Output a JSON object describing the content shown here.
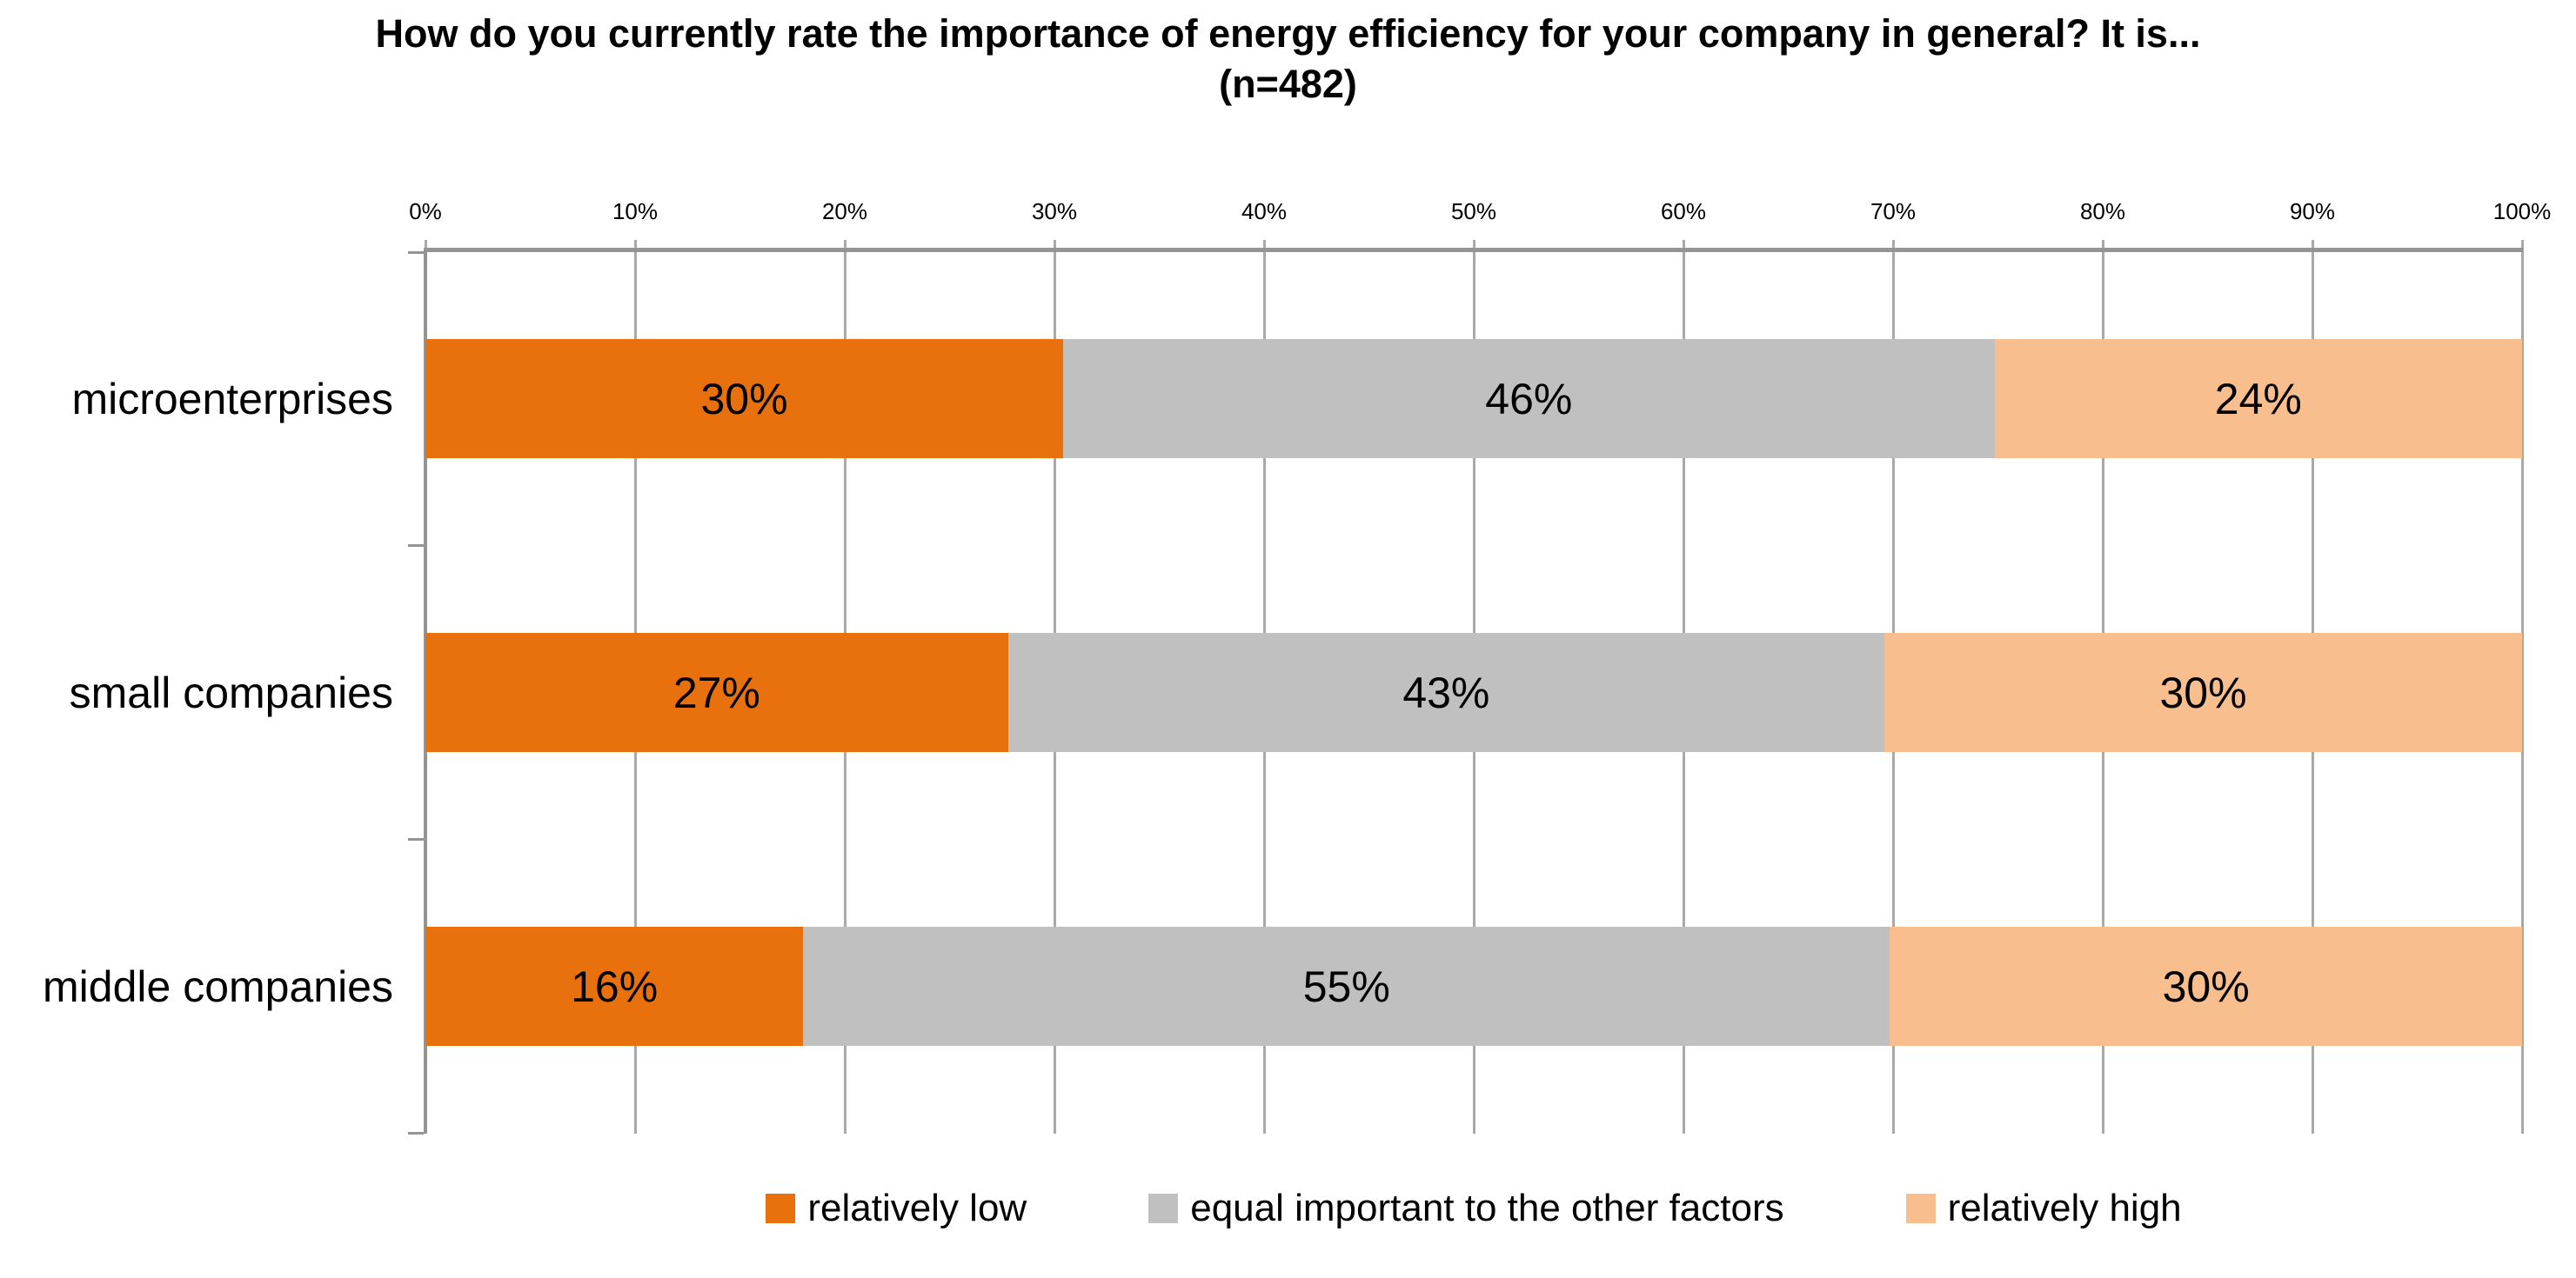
{
  "title": "How do you currently rate the importance of energy efficiency for your company in general? It is... (n=482)",
  "chart_data": {
    "type": "bar",
    "orientation": "horizontal",
    "stacked": true,
    "title": "How do you currently rate the importance of energy efficiency for your company in general? It is... (n=482)",
    "sample_size": "n=482",
    "categories": [
      "microenterprises",
      "small companies",
      "middle companies"
    ],
    "series": [
      {
        "name": "relatively low",
        "color": "#E8710D",
        "values": [
          30,
          27,
          16
        ],
        "value_labels": [
          "30%",
          "27%",
          "16%"
        ]
      },
      {
        "name": "equal important to the other factors",
        "color": "#C0C0C0",
        "values": [
          46,
          43,
          55
        ],
        "value_labels": [
          "46%",
          "43%",
          "55%"
        ]
      },
      {
        "name": "relatively high",
        "color": "#F9BE8E",
        "values": [
          24,
          30,
          30
        ],
        "value_labels": [
          "24%",
          "30%",
          "30%"
        ]
      }
    ],
    "x_axis": {
      "position": "top",
      "min": 0,
      "max": 100,
      "tick_step": 10,
      "ticks": [
        "0%",
        "10%",
        "20%",
        "30%",
        "40%",
        "50%",
        "60%",
        "70%",
        "80%",
        "90%",
        "100%"
      ]
    },
    "grid": true,
    "legend_position": "bottom",
    "colors": {
      "grid_line": "#A9A9A9",
      "axis_line": "#949494",
      "label_text": "#000000",
      "background": "#FFFFFF"
    }
  }
}
